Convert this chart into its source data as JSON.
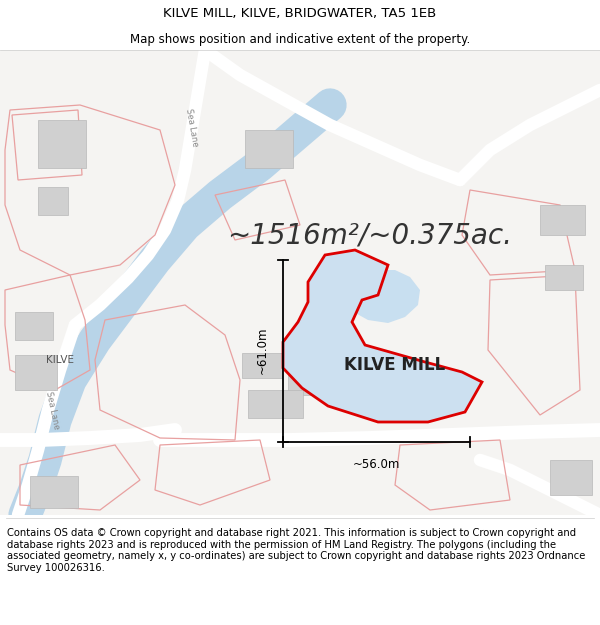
{
  "title_line1": "KILVE MILL, KILVE, BRIDGWATER, TA5 1EB",
  "title_line2": "Map shows position and indicative extent of the property.",
  "area_text": "~1516m²/~0.375ac.",
  "property_label": "KILVE MILL",
  "dim_horizontal": "~56.0m",
  "dim_vertical": "~61.0m",
  "footer_text": "Contains OS data © Crown copyright and database right 2021. This information is subject to Crown copyright and database rights 2023 and is reproduced with the permission of HM Land Registry. The polygons (including the associated geometry, namely x, y co-ordinates) are subject to Crown copyright and database rights 2023 Ordnance Survey 100026316.",
  "map_bg": "#f5f4f2",
  "road_color": "#ffffff",
  "water_color": "#c8dff0",
  "property_fill": "#cfe0f0",
  "property_edge": "#dd0000",
  "other_outline": "#e89090",
  "title_fontsize": 9.5,
  "area_fontsize": 22,
  "label_fontsize": 13,
  "footer_fontsize": 7.2
}
